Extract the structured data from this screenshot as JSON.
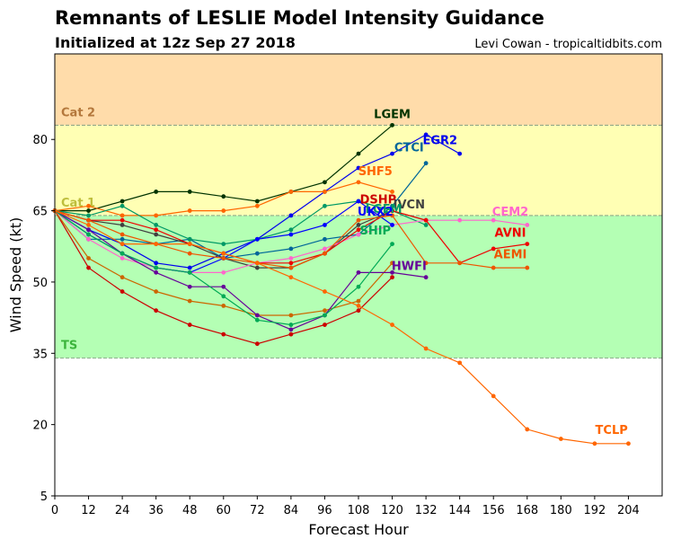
{
  "title": "Remnants of LESLIE Model Intensity Guidance",
  "subtitle": "Initialized at 12z Sep 27 2018",
  "credit": "Levi Cowan - tropicaltidbits.com",
  "chart_data": {
    "type": "line",
    "title": "Remnants of LESLIE Model Intensity Guidance",
    "xlabel": "Forecast Hour",
    "ylabel": "Wind Speed (kt)",
    "xlim": [
      0,
      216
    ],
    "ylim": [
      5,
      98
    ],
    "xticks": [
      0,
      12,
      24,
      36,
      48,
      60,
      72,
      84,
      96,
      108,
      120,
      132,
      144,
      156,
      168,
      180,
      192,
      204
    ],
    "yticks": [
      5,
      20,
      35,
      50,
      65,
      80
    ],
    "grid": false,
    "bands": [
      {
        "label": "TS",
        "from": 34,
        "to": 64,
        "color": "#b4ffb4",
        "label_color": "#3cb43c"
      },
      {
        "label": "Cat 1",
        "from": 64,
        "to": 83,
        "color": "#ffffb4",
        "label_color": "#bebe3c"
      },
      {
        "label": "Cat 2",
        "from": 83,
        "to": 98,
        "color": "#ffdcaa",
        "label_color": "#b4783c"
      }
    ],
    "series": [
      {
        "name": "LGEM",
        "color": "#003300",
        "x": [
          0,
          12,
          24,
          36,
          48,
          60,
          72,
          84,
          96,
          108,
          120
        ],
        "values": [
          65,
          65,
          67,
          69,
          69,
          68,
          67,
          69,
          71,
          77,
          83
        ]
      },
      {
        "name": "EGR2",
        "color": "#0000ee",
        "x": [
          0,
          12,
          24,
          36,
          48,
          60,
          72,
          84,
          96,
          108,
          120,
          132,
          144
        ],
        "values": [
          65,
          61,
          58,
          54,
          53,
          56,
          59,
          64,
          69,
          74,
          77,
          81,
          77
        ]
      },
      {
        "name": "CTCI",
        "color": "#006699",
        "x": [
          0,
          12,
          24,
          36,
          48,
          60,
          72,
          84,
          96,
          108,
          120,
          132
        ],
        "values": [
          65,
          59,
          59,
          58,
          59,
          55,
          56,
          57,
          59,
          60,
          66,
          75
        ]
      },
      {
        "name": "SHF5",
        "color": "#ff6600",
        "x": [
          0,
          12,
          24,
          36,
          48,
          60,
          72,
          84,
          96,
          108,
          120
        ],
        "values": [
          65,
          66,
          64,
          64,
          65,
          65,
          66,
          69,
          69,
          71,
          69
        ]
      },
      {
        "name": "IVCN",
        "color": "#404040",
        "x": [
          0,
          12,
          24,
          36,
          48,
          60,
          72,
          84,
          96,
          108,
          120,
          132
        ],
        "values": [
          65,
          63,
          62,
          60,
          58,
          55,
          53,
          53,
          56,
          62,
          65,
          63
        ]
      },
      {
        "name": "DSHP",
        "color": "#cc0000",
        "x": [
          0,
          12,
          24,
          36,
          48,
          60,
          72,
          84,
          96,
          108,
          120
        ],
        "values": [
          65,
          53,
          48,
          44,
          41,
          39,
          37,
          39,
          41,
          44,
          51
        ]
      },
      {
        "name": "LGEM",
        "color": "#cc6600",
        "x": [
          0,
          12,
          24,
          36,
          48,
          60,
          72,
          84,
          96,
          108,
          120
        ],
        "values": [
          65,
          55,
          51,
          48,
          46,
          45,
          43,
          43,
          44,
          46,
          54
        ]
      },
      {
        "name": "IVCN",
        "color": "#009966",
        "x": [
          0,
          12,
          24,
          36,
          48,
          60,
          72,
          84,
          96,
          108,
          120,
          132
        ],
        "values": [
          65,
          64,
          66,
          62,
          59,
          58,
          59,
          61,
          66,
          67,
          65,
          62
        ]
      },
      {
        "name": "CEM2",
        "color": "#ff66cc",
        "x": [
          0,
          12,
          24,
          36,
          48,
          60,
          72,
          84,
          96,
          108,
          120,
          132,
          144,
          156,
          168
        ],
        "values": [
          65,
          59,
          55,
          53,
          52,
          52,
          54,
          55,
          57,
          60,
          62,
          63,
          63,
          63,
          62
        ]
      },
      {
        "name": "AVNI",
        "color": "#ee0000",
        "x": [
          0,
          12,
          24,
          36,
          48,
          60,
          72,
          84,
          96,
          108,
          120,
          132,
          144,
          156,
          168
        ],
        "values": [
          65,
          63,
          63,
          61,
          58,
          56,
          54,
          54,
          56,
          61,
          65,
          63,
          54,
          57,
          58
        ]
      },
      {
        "name": "UKX2",
        "color": "#0000ff",
        "x": [
          0,
          12,
          24,
          36,
          48,
          60,
          72,
          84,
          96,
          108,
          120
        ],
        "values": [
          65,
          60,
          56,
          53,
          52,
          55,
          59,
          60,
          62,
          67,
          62
        ]
      },
      {
        "name": "AEMI",
        "color": "#ee5500",
        "x": [
          0,
          12,
          24,
          36,
          48,
          60,
          72,
          84,
          96,
          108,
          120,
          132,
          144,
          156,
          168
        ],
        "values": [
          65,
          63,
          60,
          58,
          56,
          55,
          54,
          53,
          56,
          63,
          64,
          54,
          54,
          53,
          53
        ]
      },
      {
        "name": "HWFI",
        "color": "#660099",
        "x": [
          0,
          12,
          24,
          36,
          48,
          60,
          72,
          84,
          96,
          108,
          120,
          132
        ],
        "values": [
          65,
          61,
          56,
          52,
          49,
          49,
          43,
          40,
          43,
          52,
          52,
          51
        ]
      },
      {
        "name": "SHIP",
        "color": "#00aa55",
        "x": [
          0,
          12,
          24,
          36,
          48,
          60,
          72,
          84,
          96,
          108,
          120
        ],
        "values": [
          65,
          60,
          56,
          53,
          52,
          47,
          42,
          41,
          43,
          49,
          58
        ]
      },
      {
        "name": "TCLP",
        "color": "#ff6600",
        "x": [
          0,
          12,
          24,
          36,
          48,
          60,
          72,
          84,
          96,
          108,
          120,
          132,
          144,
          156,
          168,
          180,
          192,
          204
        ],
        "values": [
          65,
          62,
          58,
          58,
          58,
          56,
          54,
          51,
          48,
          45,
          41,
          36,
          33,
          26,
          19,
          17,
          16,
          16
        ]
      }
    ],
    "labels": [
      {
        "text": "LGEM",
        "x": 120,
        "y": 84.5,
        "color": "#003300"
      },
      {
        "text": "EGR2",
        "x": 137,
        "y": 79,
        "color": "#0000ee"
      },
      {
        "text": "CTCI",
        "x": 126,
        "y": 77.5,
        "color": "#006699"
      },
      {
        "text": "SHF5",
        "x": 114,
        "y": 72.5,
        "color": "#ff6600"
      },
      {
        "text": "IVCN",
        "x": 126,
        "y": 65.5,
        "color": "#404040"
      },
      {
        "text": "DSHP",
        "x": 115,
        "y": 66.5,
        "color": "#cc0000"
      },
      {
        "text": "LGEM",
        "x": 117,
        "y": 64.5,
        "color": "#009966"
      },
      {
        "text": "UKX2",
        "x": 114,
        "y": 64,
        "color": "#0000ff"
      },
      {
        "text": "CEM2",
        "x": 162,
        "y": 64,
        "color": "#ff66cc"
      },
      {
        "text": "SHIP",
        "x": 114,
        "y": 60,
        "color": "#00aa55"
      },
      {
        "text": "AVNI",
        "x": 162,
        "y": 59.5,
        "color": "#ee0000"
      },
      {
        "text": "HWFI",
        "x": 126,
        "y": 52.5,
        "color": "#660099"
      },
      {
        "text": "AEMI",
        "x": 162,
        "y": 55,
        "color": "#ee5500"
      },
      {
        "text": "TCLP",
        "x": 198,
        "y": 18,
        "color": "#ff6600"
      }
    ]
  }
}
